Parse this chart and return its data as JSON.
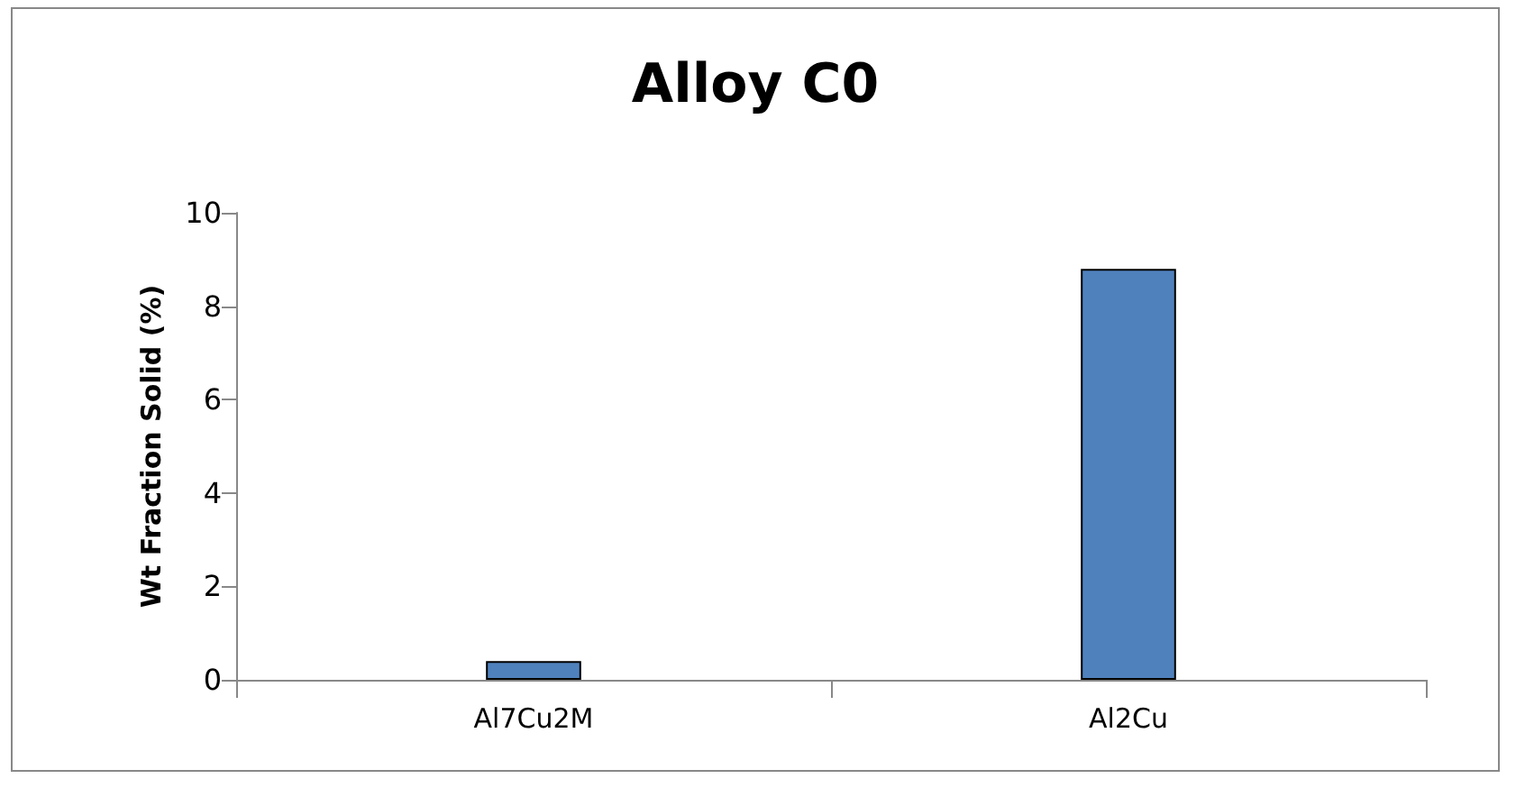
{
  "chart_data": {
    "type": "bar",
    "title": "Alloy C0",
    "ylabel": "Wt Fraction Solid (%)",
    "categories": [
      "Al7Cu2M",
      "Al2Cu"
    ],
    "values": [
      0.4,
      8.8
    ],
    "color": "#4f81bd",
    "ylim": [
      0,
      10
    ],
    "yticks": [
      0,
      2,
      4,
      6,
      8,
      10
    ],
    "grid": false
  }
}
